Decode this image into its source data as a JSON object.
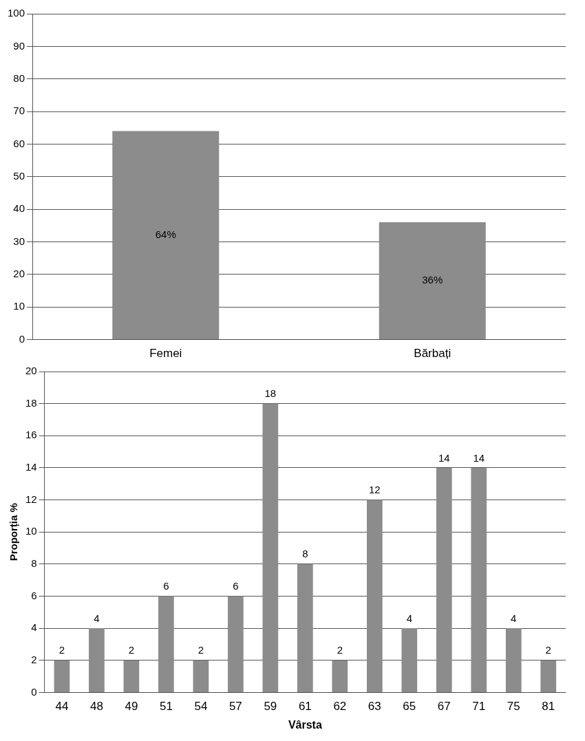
{
  "chart_data": [
    {
      "type": "bar",
      "categories": [
        "Femei",
        "Bărbați"
      ],
      "values": [
        64,
        36
      ],
      "value_labels": [
        "64%",
        "36%"
      ],
      "color": "#8c8c8c",
      "ylim": [
        0,
        100
      ],
      "yticks": [
        0,
        10,
        20,
        30,
        40,
        50,
        60,
        70,
        80,
        90,
        100
      ],
      "grid": "y",
      "legend": false
    },
    {
      "type": "bar",
      "categories": [
        "44",
        "48",
        "49",
        "51",
        "54",
        "57",
        "59",
        "61",
        "62",
        "63",
        "65",
        "67",
        "71",
        "75",
        "81"
      ],
      "values": [
        2,
        4,
        2,
        6,
        2,
        6,
        18,
        8,
        2,
        12,
        4,
        14,
        14,
        4,
        2
      ],
      "data_labels": true,
      "color": "#8c8c8c",
      "ylim": [
        0,
        20
      ],
      "yticks": [
        0,
        2,
        4,
        6,
        8,
        10,
        12,
        14,
        16,
        18,
        20
      ],
      "grid": "y",
      "legend": false,
      "xlabel": "Vârsta",
      "ylabel": "Proporția %"
    }
  ]
}
